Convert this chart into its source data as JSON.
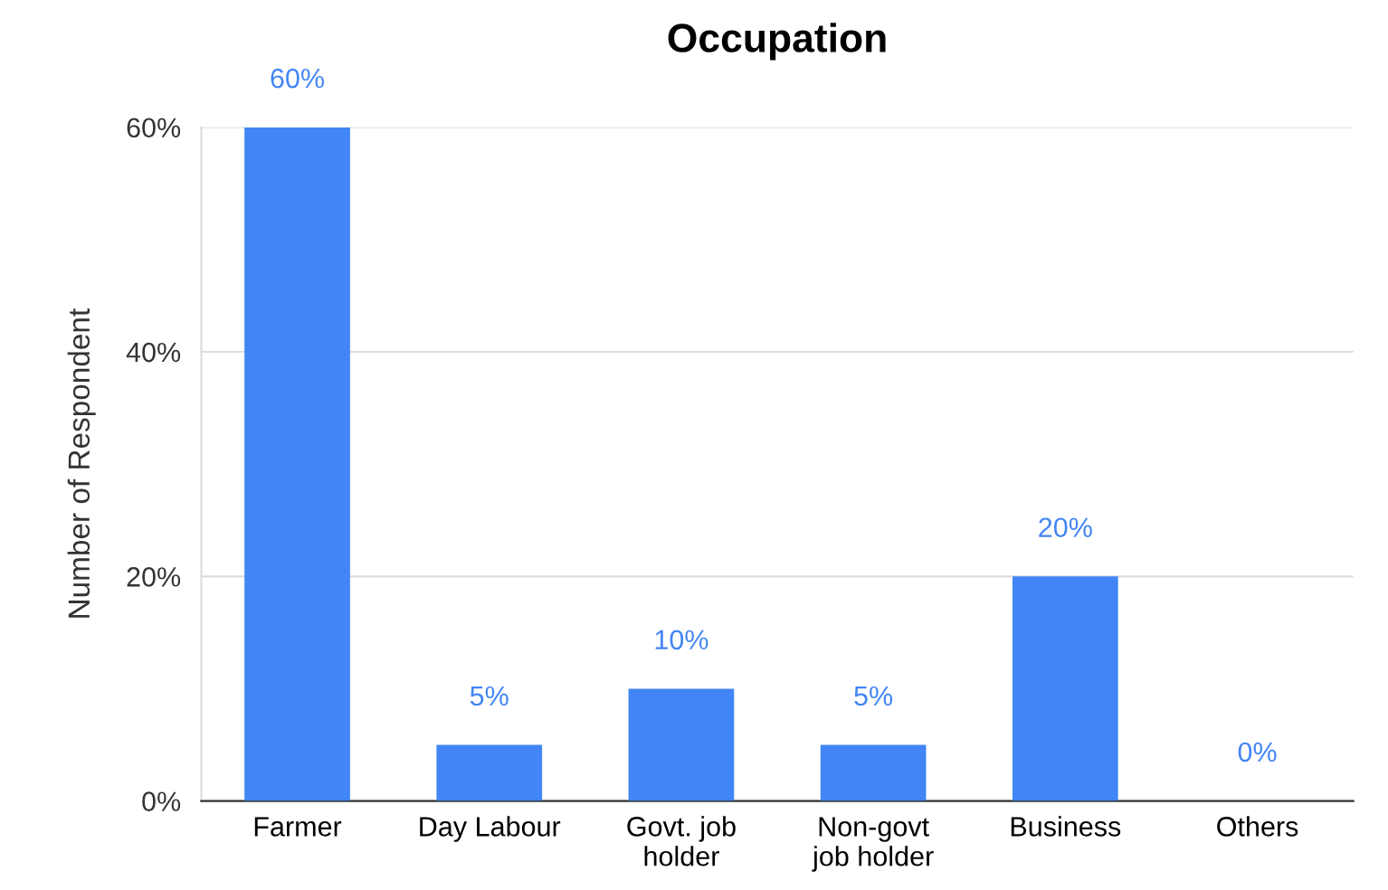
{
  "chart_data": {
    "type": "bar",
    "title": "Occupation",
    "ylabel": "Number of Respondent",
    "categories": [
      "Farmer",
      "Day Labour",
      "Govt. job\nholder",
      "Non-govt\njob holder",
      "Business",
      "Others"
    ],
    "values": [
      60,
      5,
      10,
      5,
      20,
      0
    ],
    "value_labels": [
      "60%",
      "5%",
      "10%",
      "5%",
      "20%",
      "0%"
    ],
    "color": "#4285f4",
    "ylim": [
      0,
      60
    ],
    "yticks": [
      {
        "value": 0,
        "label": "0%"
      },
      {
        "value": 20,
        "label": "20%"
      },
      {
        "value": 40,
        "label": "40%"
      },
      {
        "value": 60,
        "label": "60%"
      }
    ],
    "grid": "y"
  }
}
